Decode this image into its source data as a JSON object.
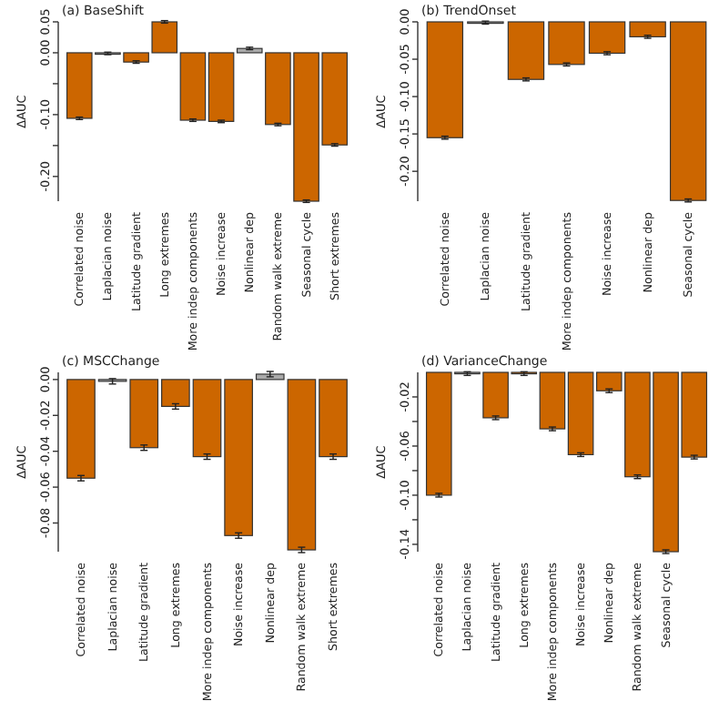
{
  "chart_data": [
    {
      "type": "bar",
      "title": "(a) BaseShift",
      "ylabel": "ΔAUC",
      "categories": [
        "Correlated noise",
        "Laplacian noise",
        "Latitude gradient",
        "Long extremes",
        "More indep components",
        "Noise increase",
        "Nonlinear dep",
        "Random walk extreme",
        "Seasonal cycle",
        "Short extremes"
      ],
      "values": [
        -0.106,
        -0.001,
        -0.015,
        0.05,
        -0.109,
        -0.111,
        0.007,
        -0.116,
        -0.24,
        -0.149
      ],
      "errors": [
        0.002,
        0.002,
        0.002,
        0.002,
        0.002,
        0.002,
        0.002,
        0.002,
        0.002,
        0.002
      ],
      "colors": [
        "#cc6600",
        "#aaaaaa",
        "#cc6600",
        "#cc6600",
        "#cc6600",
        "#cc6600",
        "#aaaaaa",
        "#cc6600",
        "#cc6600",
        "#cc6600"
      ],
      "ylim": [
        -0.24,
        0.05
      ],
      "yticks": [
        0.05,
        {
          "value": 0,
          "label": "0.00"
        },
        {
          "value": -0.05,
          "label": null
        },
        {
          "value": -0.1,
          "label": "-0.10"
        },
        {
          "value": -0.15,
          "label": null
        },
        {
          "value": -0.2,
          "label": "-0.20"
        }
      ],
      "grid": false
    },
    {
      "type": "bar",
      "title": "(b) TrendOnset",
      "ylabel": "ΔAUC",
      "categories": [
        "Correlated noise",
        "Laplacian noise",
        "Latitude gradient",
        "More indep components",
        "Noise increase",
        "Nonlinear dep",
        "Seasonal cycle"
      ],
      "values": [
        -0.155,
        -0.001,
        -0.077,
        -0.057,
        -0.042,
        -0.02,
        -0.239
      ],
      "errors": [
        0.002,
        0.002,
        0.002,
        0.002,
        0.002,
        0.002,
        0.002
      ],
      "colors": [
        "#cc6600",
        "#aaaaaa",
        "#cc6600",
        "#cc6600",
        "#cc6600",
        "#cc6600",
        "#cc6600"
      ],
      "ylim": [
        -0.24,
        0
      ],
      "yticks": [
        {
          "value": 0,
          "label": "0.00"
        },
        -0.05,
        {
          "value": -0.1,
          "label": "-0.10"
        },
        -0.15,
        {
          "value": -0.2,
          "label": "-0.20"
        }
      ],
      "grid": false
    },
    {
      "type": "bar",
      "title": "(c) MSCChange",
      "ylabel": "ΔAUC",
      "categories": [
        "Correlated noise",
        "Laplacian noise",
        "Latitude gradient",
        "Long extremes",
        "More indep components",
        "Noise increase",
        "Nonlinear dep",
        "Random walk extreme",
        "Short extremes"
      ],
      "values": [
        -0.055,
        -0.001,
        -0.038,
        -0.015,
        -0.043,
        -0.087,
        0.003,
        -0.095,
        -0.043
      ],
      "errors": [
        0.0015,
        0.0015,
        0.0015,
        0.0015,
        0.0015,
        0.0015,
        0.0015,
        0.0015,
        0.0015
      ],
      "colors": [
        "#cc6600",
        "#aaaaaa",
        "#cc6600",
        "#cc6600",
        "#cc6600",
        "#cc6600",
        "#aaaaaa",
        "#cc6600",
        "#cc6600"
      ],
      "ylim": [
        -0.096,
        0.004
      ],
      "yticks": [
        {
          "value": 0,
          "label": "0.00"
        },
        {
          "value": -0.02,
          "label": "-0.02"
        },
        {
          "value": -0.04,
          "label": "-0.04"
        },
        {
          "value": -0.06,
          "label": "-0.06"
        },
        {
          "value": -0.08,
          "label": "-0.08"
        }
      ],
      "grid": false
    },
    {
      "type": "bar",
      "title": "(d) VarianceChange",
      "ylabel": "ΔAUC",
      "categories": [
        "Correlated noise",
        "Laplacian noise",
        "Latitude gradient",
        "Long extremes",
        "More indep components",
        "Noise increase",
        "Nonlinear dep",
        "Random walk extreme",
        "Seasonal cycle",
        null
      ],
      "values": [
        -0.1,
        -0.001,
        -0.037,
        -0.001,
        -0.046,
        -0.067,
        -0.015,
        -0.085,
        -0.146,
        -0.069
      ],
      "errors": [
        0.0015,
        0.0015,
        0.0015,
        0.0015,
        0.0015,
        0.0015,
        0.0015,
        0.0015,
        0.0015,
        0.0015
      ],
      "colors": [
        "#cc6600",
        "#aaaaaa",
        "#cc6600",
        "#cc6600",
        "#cc6600",
        "#cc6600",
        "#cc6600",
        "#cc6600",
        "#cc6600",
        "#cc6600"
      ],
      "ylim": [
        -0.146,
        0
      ],
      "yticks": [
        {
          "value": -0.02,
          "label": "-0.02"
        },
        {
          "value": -0.04,
          "label": null
        },
        {
          "value": -0.06,
          "label": "-0.06"
        },
        {
          "value": -0.08,
          "label": null
        },
        {
          "value": -0.1,
          "label": "-0.10"
        },
        {
          "value": -0.12,
          "label": null
        },
        {
          "value": -0.14,
          "label": "-0.14"
        }
      ],
      "grid": false
    }
  ]
}
